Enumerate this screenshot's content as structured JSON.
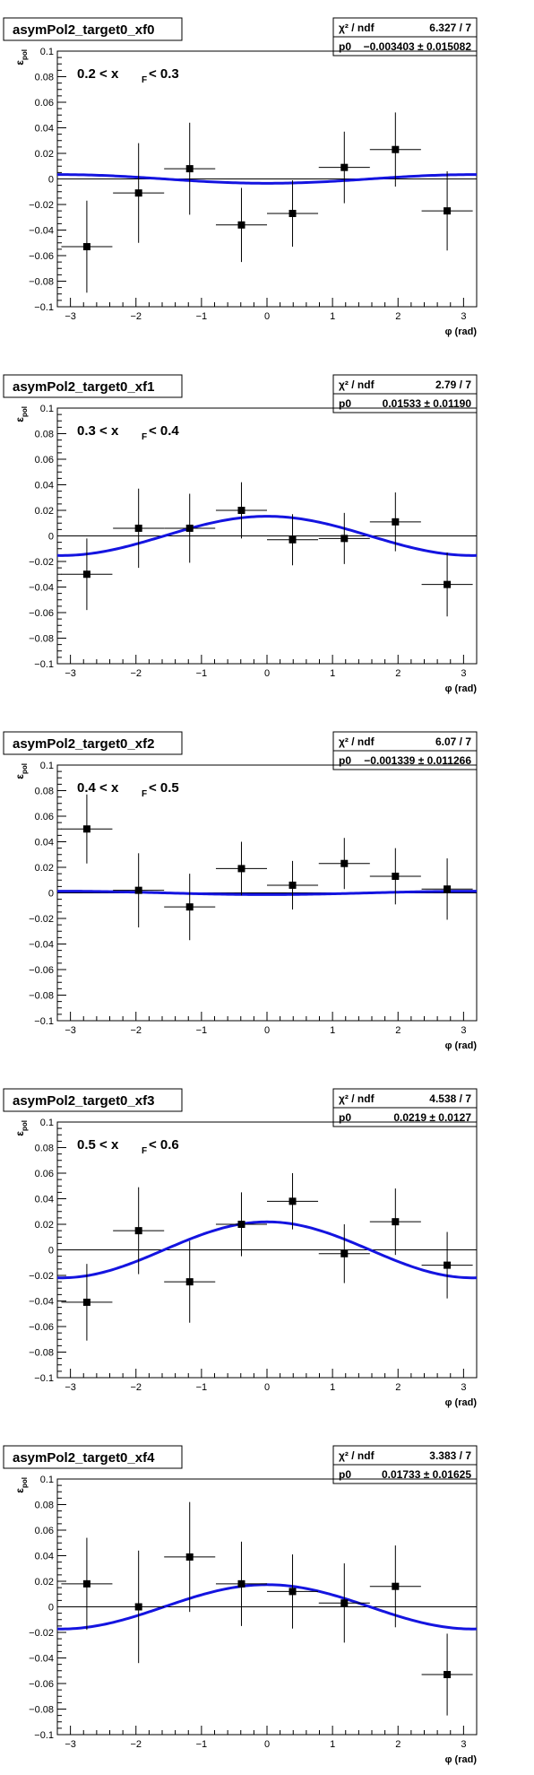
{
  "chart_data": [
    {
      "type": "scatter",
      "title": "asymPol2_target0_xf0",
      "annotation": "0.2 < x",
      "annotation_sub": "F",
      "annotation_tail": " < 0.3",
      "xlabel": "φ (rad)",
      "ylabel": "ε",
      "ylabel_sub": "pol",
      "xlim": [
        -3.2,
        3.2
      ],
      "ylim": [
        -0.1,
        0.1
      ],
      "xticks": [
        -3,
        -2,
        -1,
        0,
        1,
        2,
        3
      ],
      "yticks": [
        -0.1,
        -0.08,
        -0.06,
        -0.04,
        -0.02,
        0,
        0.02,
        0.04,
        0.06,
        0.08,
        0.1
      ],
      "stats": {
        "chi2_label": "χ² / ndf",
        "chi2_value": "6.327 / 7",
        "p0_label": "p0",
        "p0_value": "−0.003403 ± 0.015082"
      },
      "fit": {
        "func": "p0*cos(x)",
        "p0": -0.003403
      },
      "points": [
        {
          "x": -2.75,
          "y": -0.053,
          "yerr": 0.036,
          "xerr": 0.39
        },
        {
          "x": -1.96,
          "y": -0.011,
          "yerr": 0.039,
          "xerr": 0.39
        },
        {
          "x": -1.18,
          "y": 0.008,
          "yerr": 0.036,
          "xerr": 0.39
        },
        {
          "x": -0.39,
          "y": -0.036,
          "yerr": 0.029,
          "xerr": 0.39
        },
        {
          "x": 0.39,
          "y": -0.027,
          "yerr": 0.026,
          "xerr": 0.39
        },
        {
          "x": 1.18,
          "y": 0.009,
          "yerr": 0.028,
          "xerr": 0.39
        },
        {
          "x": 1.96,
          "y": 0.023,
          "yerr": 0.029,
          "xerr": 0.39
        },
        {
          "x": 2.75,
          "y": -0.025,
          "yerr": 0.031,
          "xerr": 0.39
        }
      ]
    },
    {
      "type": "scatter",
      "title": "asymPol2_target0_xf1",
      "annotation": "0.3 < x",
      "annotation_sub": "F",
      "annotation_tail": " < 0.4",
      "xlabel": "φ (rad)",
      "ylabel": "ε",
      "ylabel_sub": "pol",
      "xlim": [
        -3.2,
        3.2
      ],
      "ylim": [
        -0.1,
        0.1
      ],
      "xticks": [
        -3,
        -2,
        -1,
        0,
        1,
        2,
        3
      ],
      "yticks": [
        -0.1,
        -0.08,
        -0.06,
        -0.04,
        -0.02,
        0,
        0.02,
        0.04,
        0.06,
        0.08,
        0.1
      ],
      "stats": {
        "chi2_label": "χ² / ndf",
        "chi2_value": "2.79 / 7",
        "p0_label": "p0",
        "p0_value": "0.01533 ± 0.01190"
      },
      "fit": {
        "func": "p0*cos(x)",
        "p0": 0.01533
      },
      "points": [
        {
          "x": -2.75,
          "y": -0.03,
          "yerr": 0.028,
          "xerr": 0.39
        },
        {
          "x": -1.96,
          "y": 0.006,
          "yerr": 0.031,
          "xerr": 0.39
        },
        {
          "x": -1.18,
          "y": 0.006,
          "yerr": 0.027,
          "xerr": 0.39
        },
        {
          "x": -0.39,
          "y": 0.02,
          "yerr": 0.022,
          "xerr": 0.39
        },
        {
          "x": 0.39,
          "y": -0.003,
          "yerr": 0.02,
          "xerr": 0.39
        },
        {
          "x": 1.18,
          "y": -0.002,
          "yerr": 0.02,
          "xerr": 0.39
        },
        {
          "x": 1.96,
          "y": 0.011,
          "yerr": 0.023,
          "xerr": 0.39
        },
        {
          "x": 2.75,
          "y": -0.038,
          "yerr": 0.025,
          "xerr": 0.39
        }
      ]
    },
    {
      "type": "scatter",
      "title": "asymPol2_target0_xf2",
      "annotation": "0.4 < x",
      "annotation_sub": "F",
      "annotation_tail": " < 0.5",
      "xlabel": "φ (rad)",
      "ylabel": "ε",
      "ylabel_sub": "pol",
      "xlim": [
        -3.2,
        3.2
      ],
      "ylim": [
        -0.1,
        0.1
      ],
      "xticks": [
        -3,
        -2,
        -1,
        0,
        1,
        2,
        3
      ],
      "yticks": [
        -0.1,
        -0.08,
        -0.06,
        -0.04,
        -0.02,
        0,
        0.02,
        0.04,
        0.06,
        0.08,
        0.1
      ],
      "stats": {
        "chi2_label": "χ² / ndf",
        "chi2_value": "6.07 / 7",
        "p0_label": "p0",
        "p0_value": "−0.001339 ± 0.011266"
      },
      "fit": {
        "func": "p0*cos(x)",
        "p0": -0.001339
      },
      "points": [
        {
          "x": -2.75,
          "y": 0.05,
          "yerr": 0.027,
          "xerr": 0.39
        },
        {
          "x": -1.96,
          "y": 0.002,
          "yerr": 0.029,
          "xerr": 0.39
        },
        {
          "x": -1.18,
          "y": -0.011,
          "yerr": 0.026,
          "xerr": 0.39
        },
        {
          "x": -0.39,
          "y": 0.019,
          "yerr": 0.021,
          "xerr": 0.39
        },
        {
          "x": 0.39,
          "y": 0.006,
          "yerr": 0.019,
          "xerr": 0.39
        },
        {
          "x": 1.18,
          "y": 0.023,
          "yerr": 0.02,
          "xerr": 0.39
        },
        {
          "x": 1.96,
          "y": 0.013,
          "yerr": 0.022,
          "xerr": 0.39
        },
        {
          "x": 2.75,
          "y": 0.003,
          "yerr": 0.024,
          "xerr": 0.39
        }
      ]
    },
    {
      "type": "scatter",
      "title": "asymPol2_target0_xf3",
      "annotation": "0.5 < x",
      "annotation_sub": "F",
      "annotation_tail": " < 0.6",
      "xlabel": "φ (rad)",
      "ylabel": "ε",
      "ylabel_sub": "pol",
      "xlim": [
        -3.2,
        3.2
      ],
      "ylim": [
        -0.1,
        0.1
      ],
      "xticks": [
        -3,
        -2,
        -1,
        0,
        1,
        2,
        3
      ],
      "yticks": [
        -0.1,
        -0.08,
        -0.06,
        -0.04,
        -0.02,
        0,
        0.02,
        0.04,
        0.06,
        0.08,
        0.1
      ],
      "stats": {
        "chi2_label": "χ² / ndf",
        "chi2_value": "4.538 / 7",
        "p0_label": "p0",
        "p0_value": "0.0219 ± 0.0127"
      },
      "fit": {
        "func": "p0*cos(x)",
        "p0": 0.0219
      },
      "points": [
        {
          "x": -2.75,
          "y": -0.041,
          "yerr": 0.03,
          "xerr": 0.39
        },
        {
          "x": -1.96,
          "y": 0.015,
          "yerr": 0.034,
          "xerr": 0.39
        },
        {
          "x": -1.18,
          "y": -0.025,
          "yerr": 0.032,
          "xerr": 0.39
        },
        {
          "x": -0.39,
          "y": 0.02,
          "yerr": 0.025,
          "xerr": 0.39
        },
        {
          "x": 0.39,
          "y": 0.038,
          "yerr": 0.022,
          "xerr": 0.39
        },
        {
          "x": 1.18,
          "y": -0.003,
          "yerr": 0.023,
          "xerr": 0.39
        },
        {
          "x": 1.96,
          "y": 0.022,
          "yerr": 0.026,
          "xerr": 0.39
        },
        {
          "x": 2.75,
          "y": -0.012,
          "yerr": 0.026,
          "xerr": 0.39
        }
      ]
    },
    {
      "type": "scatter",
      "title": "asymPol2_target0_xf4",
      "annotation": "",
      "annotation_sub": "",
      "annotation_tail": "",
      "xlabel": "φ (rad)",
      "ylabel": "ε",
      "ylabel_sub": "pol",
      "xlim": [
        -3.2,
        3.2
      ],
      "ylim": [
        -0.1,
        0.1
      ],
      "xticks": [
        -3,
        -2,
        -1,
        0,
        1,
        2,
        3
      ],
      "yticks": [
        -0.1,
        -0.08,
        -0.06,
        -0.04,
        -0.02,
        0,
        0.02,
        0.04,
        0.06,
        0.08,
        0.1
      ],
      "stats": {
        "chi2_label": "χ² / ndf",
        "chi2_value": "3.383 / 7",
        "p0_label": "p0",
        "p0_value": "0.01733 ± 0.01625"
      },
      "fit": {
        "func": "p0*cos(x)",
        "p0": 0.01733
      },
      "points": [
        {
          "x": -2.75,
          "y": 0.018,
          "yerr": 0.036,
          "xerr": 0.39
        },
        {
          "x": -1.96,
          "y": 0.0,
          "yerr": 0.044,
          "xerr": 0.39
        },
        {
          "x": -1.18,
          "y": 0.039,
          "yerr": 0.043,
          "xerr": 0.39
        },
        {
          "x": -0.39,
          "y": 0.018,
          "yerr": 0.033,
          "xerr": 0.39
        },
        {
          "x": 0.39,
          "y": 0.012,
          "yerr": 0.029,
          "xerr": 0.39
        },
        {
          "x": 1.18,
          "y": 0.003,
          "yerr": 0.031,
          "xerr": 0.39
        },
        {
          "x": 1.96,
          "y": 0.016,
          "yerr": 0.032,
          "xerr": 0.39
        },
        {
          "x": 2.75,
          "y": -0.053,
          "yerr": 0.032,
          "xerr": 0.39
        }
      ]
    }
  ],
  "colors": {
    "fit": "#1414e0",
    "marker": "#000000",
    "axis": "#000000"
  }
}
